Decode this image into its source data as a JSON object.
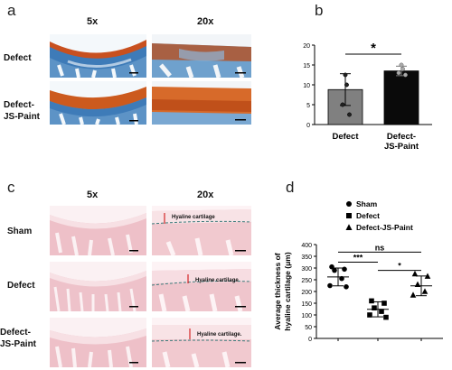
{
  "panels": {
    "a": {
      "label": "a",
      "col_5x": "5x",
      "col_20x": "20x",
      "row_defect": "Defect",
      "row_js_line1": "Defect-",
      "row_js_line2": "JS-Paint"
    },
    "b": {
      "label": "b"
    },
    "c": {
      "label": "c",
      "col_5x": "5x",
      "col_20x": "20x",
      "row_sham": "Sham",
      "row_defect": "Defect",
      "row_js_line1": "Defect-",
      "row_js_line2": "JS-Paint",
      "annotation": "Hyaline cartilage",
      "annotation_last": "Hyaline cartilage."
    },
    "d": {
      "label": "d"
    }
  },
  "chart_data": [
    {
      "type": "bar",
      "panel": "b",
      "categories": [
        "Defect",
        "Defect-JS-Paint"
      ],
      "category_lines": [
        [
          "Defect"
        ],
        [
          "Defect-",
          "JS-Paint"
        ]
      ],
      "values": [
        8.8,
        13.5
      ],
      "errors": [
        4.0,
        1.2
      ],
      "points": [
        [
          12.5,
          10.0,
          5.0,
          2.5
        ],
        [
          15.0,
          14.0,
          13.0,
          12.5
        ]
      ],
      "bar_colors": [
        "#808080",
        "#0a0a0a"
      ],
      "ylim": [
        0,
        20
      ],
      "yticks": [
        "0",
        "5",
        "10",
        "15",
        "20"
      ],
      "significance": "*"
    },
    {
      "type": "scatter",
      "panel": "d",
      "ylabel": "Average thickness of hyaline cartilage (μm)",
      "ylim": [
        0,
        400
      ],
      "yticks": [
        "0",
        "50",
        "100",
        "150",
        "200",
        "250",
        "300",
        "350",
        "400"
      ],
      "series": [
        {
          "name": "Sham",
          "marker": "circle",
          "values": [
            305,
            295,
            290,
            255,
            225,
            220
          ],
          "mean": 262,
          "sd": 38
        },
        {
          "name": "Defect",
          "marker": "square",
          "values": [
            160,
            150,
            130,
            115,
            100,
            90
          ],
          "mean": 124,
          "sd": 32
        },
        {
          "name": "Defect-JS-Paint",
          "marker": "triangle",
          "values": [
            275,
            265,
            230,
            200,
            185
          ],
          "mean": 224,
          "sd": 42
        }
      ],
      "significance": [
        {
          "from": 0,
          "to": 1,
          "label": "***"
        },
        {
          "from": 1,
          "to": 2,
          "label": "*"
        },
        {
          "from": 0,
          "to": 2,
          "label": "ns"
        }
      ]
    }
  ]
}
